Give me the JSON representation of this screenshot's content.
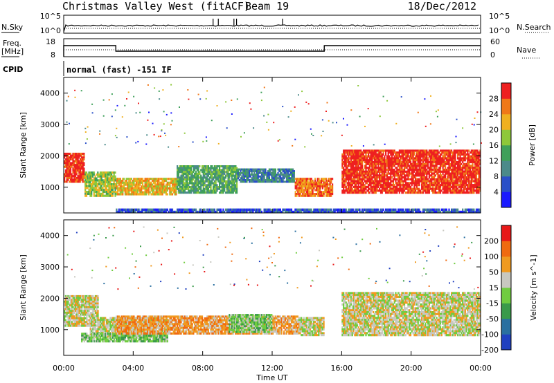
{
  "header": {
    "title": "Christmas Valley West (fitACF)",
    "beam": "Beam 19",
    "date": "18/Dec/2012"
  },
  "nsky_panel": {
    "left_label": "N.Sky",
    "right_label": "N.Search",
    "left_ticks": [
      "10^5",
      "10^0"
    ],
    "right_ticks": [
      "10^5",
      "10^0"
    ]
  },
  "freq_panel": {
    "left_label_line1": "Freq.",
    "left_label_line2": "[MHz]",
    "right_label": "Nave",
    "left_ticks": [
      "18",
      "8"
    ],
    "right_ticks": [
      "60",
      "0"
    ],
    "steps": [
      {
        "t0": 0.0,
        "t1": 3.0,
        "freq": 14.5
      },
      {
        "t0": 3.0,
        "t1": 15.0,
        "freq": 10.5
      },
      {
        "t0": 15.0,
        "t1": 24.0,
        "freq": 14.5
      }
    ]
  },
  "cpid": {
    "label": "CPID",
    "value": "normal (fast) -151 IF"
  },
  "chart_data": [
    {
      "type": "heatmap",
      "name": "power",
      "ylabel": "Slant Range [km]",
      "y_ticks": [
        "1000",
        "2000",
        "3000",
        "4000"
      ],
      "xlim": [
        0,
        24
      ],
      "ylim": [
        180,
        4500
      ],
      "colorbar": {
        "label": "Power [dB]",
        "ticks": [
          "4",
          "8",
          "12",
          "16",
          "20",
          "24",
          "28"
        ],
        "colors": [
          "#1a1aff",
          "#2a4fc8",
          "#4b8a8a",
          "#3fa05a",
          "#8ec83a",
          "#f0b020",
          "#f07818",
          "#ee2020"
        ]
      },
      "regions": [
        {
          "t0": 0.0,
          "t1": 1.2,
          "r0": 1150,
          "r1": 2100,
          "level": 7
        },
        {
          "t0": 1.2,
          "t1": 3.0,
          "r0": 700,
          "r1": 1500,
          "level": 4
        },
        {
          "t0": 3.0,
          "t1": 6.5,
          "r0": 750,
          "r1": 1300,
          "level": 5
        },
        {
          "t0": 6.5,
          "t1": 10.0,
          "r0": 800,
          "r1": 1700,
          "level": 3
        },
        {
          "t0": 10.0,
          "t1": 13.3,
          "r0": 1150,
          "r1": 1600,
          "level": 2
        },
        {
          "t0": 13.3,
          "t1": 15.5,
          "r0": 700,
          "r1": 1300,
          "level": 6
        },
        {
          "t0": 16.0,
          "t1": 24.0,
          "r0": 800,
          "r1": 2200,
          "level": 7
        },
        {
          "t0": 3.0,
          "t1": 24.0,
          "r0": 180,
          "r1": 320,
          "level": 1
        }
      ]
    },
    {
      "type": "heatmap",
      "name": "velocity",
      "ylabel": "Slant Range [km]",
      "y_ticks": [
        "1000",
        "2000",
        "3000",
        "4000"
      ],
      "xlabel": "Time UT",
      "x_ticks": [
        "00:00",
        "04:00",
        "08:00",
        "12:00",
        "16:00",
        "20:00",
        "00:00"
      ],
      "xlim": [
        0,
        24
      ],
      "ylim": [
        180,
        4500
      ],
      "colorbar": {
        "label": "Velocity [m s^-1]",
        "ticks": [
          "200",
          "100",
          "50",
          "15",
          "-15",
          "-50",
          "-100",
          "-200"
        ],
        "colors": [
          "#2040c0",
          "#2a6fa0",
          "#3a9a4a",
          "#70cc40",
          "#c8c8c0",
          "#f09a20",
          "#f06a10",
          "#e81818"
        ]
      },
      "regions": [
        {
          "t0": 0.0,
          "t1": 2.0,
          "r0": 1100,
          "r1": 2100,
          "level": 4
        },
        {
          "t0": 1.5,
          "t1": 6.0,
          "r0": 750,
          "r1": 1400,
          "level": 4
        },
        {
          "t0": 1.0,
          "t1": 6.0,
          "r0": 600,
          "r1": 900,
          "level": 3
        },
        {
          "t0": 3.0,
          "t1": 13.5,
          "r0": 850,
          "r1": 1450,
          "level": 5
        },
        {
          "t0": 9.5,
          "t1": 12.0,
          "r0": 900,
          "r1": 1500,
          "level": 3
        },
        {
          "t0": 13.5,
          "t1": 15.0,
          "r0": 800,
          "r1": 1400,
          "level": 4
        },
        {
          "t0": 16.0,
          "t1": 24.0,
          "r0": 800,
          "r1": 2200,
          "level": 4
        }
      ]
    }
  ]
}
